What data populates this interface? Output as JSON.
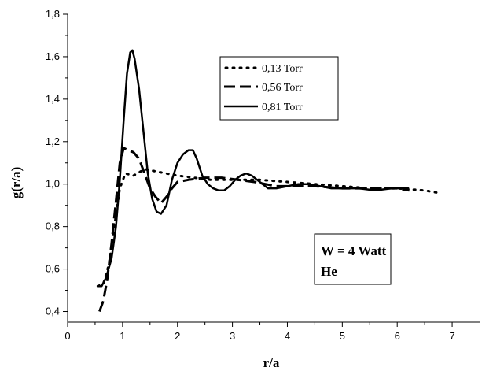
{
  "chart_data": {
    "type": "line",
    "xlabel": "r/a",
    "ylabel": "g(r/a)",
    "xlim": [
      0,
      7.5
    ],
    "ylim": [
      0.35,
      1.8
    ],
    "xticks": [
      0,
      1,
      2,
      3,
      4,
      5,
      6,
      7
    ],
    "xtick_labels": [
      "0",
      "1",
      "2",
      "3",
      "4",
      "5",
      "6",
      "7"
    ],
    "yticks": [
      0.4,
      0.6,
      0.8,
      1.0,
      1.2,
      1.4,
      1.6,
      1.8
    ],
    "ytick_labels": [
      "0,4",
      "0,6",
      "0,8",
      "1,0",
      "1,2",
      "1,4",
      "1,6",
      "1,8"
    ],
    "grid": false,
    "legend_position": "top-right",
    "annotation_lines": [
      "W = 4 Watt",
      "He"
    ],
    "series": [
      {
        "name": "0,13 Torr",
        "style": "dotted",
        "points": [
          [
            0.55,
            0.52
          ],
          [
            0.65,
            0.53
          ],
          [
            0.75,
            0.62
          ],
          [
            0.85,
            0.8
          ],
          [
            0.95,
            0.98
          ],
          [
            1.05,
            1.05
          ],
          [
            1.2,
            1.04
          ],
          [
            1.4,
            1.07
          ],
          [
            1.6,
            1.06
          ],
          [
            1.8,
            1.05
          ],
          [
            2.0,
            1.04
          ],
          [
            2.3,
            1.03
          ],
          [
            2.6,
            1.02
          ],
          [
            3.0,
            1.02
          ],
          [
            3.5,
            1.02
          ],
          [
            4.0,
            1.01
          ],
          [
            4.5,
            1.0
          ],
          [
            5.0,
            0.99
          ],
          [
            5.5,
            0.98
          ],
          [
            6.0,
            0.98
          ],
          [
            6.5,
            0.97
          ],
          [
            6.72,
            0.96
          ]
        ]
      },
      {
        "name": "0,56 Torr",
        "style": "dashed",
        "points": [
          [
            0.58,
            0.4
          ],
          [
            0.65,
            0.45
          ],
          [
            0.72,
            0.55
          ],
          [
            0.8,
            0.72
          ],
          [
            0.88,
            0.92
          ],
          [
            0.95,
            1.1
          ],
          [
            1.02,
            1.17
          ],
          [
            1.1,
            1.16
          ],
          [
            1.2,
            1.15
          ],
          [
            1.3,
            1.12
          ],
          [
            1.4,
            1.05
          ],
          [
            1.5,
            0.98
          ],
          [
            1.6,
            0.94
          ],
          [
            1.7,
            0.91
          ],
          [
            1.8,
            0.94
          ],
          [
            1.9,
            0.98
          ],
          [
            2.0,
            1.01
          ],
          [
            2.2,
            1.02
          ],
          [
            2.5,
            1.03
          ],
          [
            2.8,
            1.03
          ],
          [
            3.1,
            1.02
          ],
          [
            3.4,
            1.01
          ],
          [
            3.6,
            1.0
          ],
          [
            3.8,
            0.99
          ],
          [
            4.0,
            0.99
          ],
          [
            4.5,
            0.99
          ],
          [
            5.0,
            0.98
          ],
          [
            5.5,
            0.98
          ],
          [
            6.0,
            0.98
          ],
          [
            6.22,
            0.97
          ]
        ]
      },
      {
        "name": "0,81 Torr",
        "style": "solid",
        "points": [
          [
            0.55,
            0.52
          ],
          [
            0.62,
            0.52
          ],
          [
            0.7,
            0.56
          ],
          [
            0.8,
            0.65
          ],
          [
            0.88,
            0.8
          ],
          [
            0.95,
            1.02
          ],
          [
            1.02,
            1.3
          ],
          [
            1.08,
            1.52
          ],
          [
            1.14,
            1.62
          ],
          [
            1.18,
            1.63
          ],
          [
            1.22,
            1.59
          ],
          [
            1.3,
            1.45
          ],
          [
            1.38,
            1.25
          ],
          [
            1.46,
            1.05
          ],
          [
            1.54,
            0.93
          ],
          [
            1.62,
            0.87
          ],
          [
            1.7,
            0.86
          ],
          [
            1.8,
            0.9
          ],
          [
            1.9,
            1.02
          ],
          [
            2.0,
            1.1
          ],
          [
            2.1,
            1.14
          ],
          [
            2.2,
            1.16
          ],
          [
            2.28,
            1.16
          ],
          [
            2.35,
            1.12
          ],
          [
            2.45,
            1.04
          ],
          [
            2.55,
            1.0
          ],
          [
            2.65,
            0.98
          ],
          [
            2.75,
            0.97
          ],
          [
            2.85,
            0.97
          ],
          [
            2.95,
            0.99
          ],
          [
            3.05,
            1.02
          ],
          [
            3.15,
            1.04
          ],
          [
            3.25,
            1.05
          ],
          [
            3.35,
            1.04
          ],
          [
            3.45,
            1.02
          ],
          [
            3.55,
            1.0
          ],
          [
            3.65,
            0.98
          ],
          [
            3.8,
            0.98
          ],
          [
            4.0,
            0.99
          ],
          [
            4.2,
            1.0
          ],
          [
            4.4,
            1.0
          ],
          [
            4.6,
            0.99
          ],
          [
            4.8,
            0.98
          ],
          [
            5.0,
            0.98
          ],
          [
            5.3,
            0.98
          ],
          [
            5.6,
            0.97
          ],
          [
            5.9,
            0.98
          ],
          [
            6.2,
            0.98
          ]
        ]
      }
    ]
  }
}
